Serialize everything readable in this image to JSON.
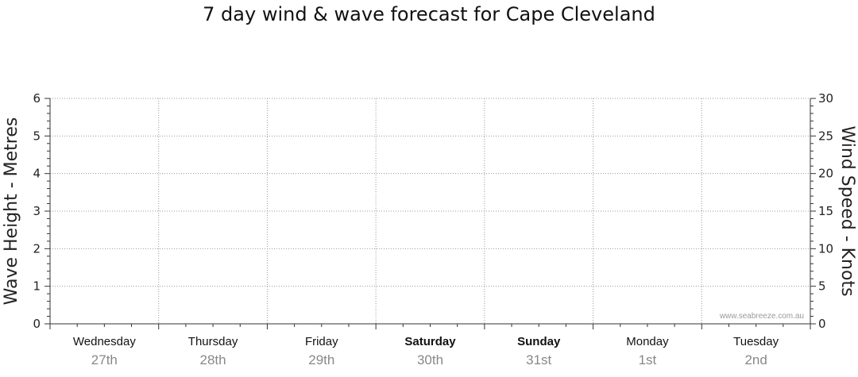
{
  "title": "7 day wind & wave forecast for Cape Cleveland",
  "watermark": "www.seabreeze.com.au",
  "chart_data": {
    "type": "line",
    "title": "7 day wind & wave forecast for Cape Cleveland",
    "ylabel_left": "Wave Height - Metres",
    "ylabel_right": "Wind Speed - Knots",
    "ylim_left": [
      0,
      6
    ],
    "ylim_right": [
      0,
      30
    ],
    "yticks_left": [
      "0",
      "1",
      "2",
      "3",
      "4",
      "5",
      "6"
    ],
    "yticks_right": [
      "0",
      "5",
      "10",
      "15",
      "20",
      "25",
      "30"
    ],
    "grid": true,
    "days": [
      {
        "name": "Wednesday",
        "date": "27th",
        "bold": false
      },
      {
        "name": "Thursday",
        "date": "28th",
        "bold": false
      },
      {
        "name": "Friday",
        "date": "29th",
        "bold": false
      },
      {
        "name": "Saturday",
        "date": "30th",
        "bold": true
      },
      {
        "name": "Sunday",
        "date": "31st",
        "bold": true
      },
      {
        "name": "Monday",
        "date": "1st",
        "bold": false
      },
      {
        "name": "Tuesday",
        "date": "2nd",
        "bold": false
      }
    ],
    "series": []
  },
  "colors": {
    "grid": "#999999",
    "axis": "#333333",
    "watermark": "#9a9a9a",
    "date": "#888888"
  }
}
